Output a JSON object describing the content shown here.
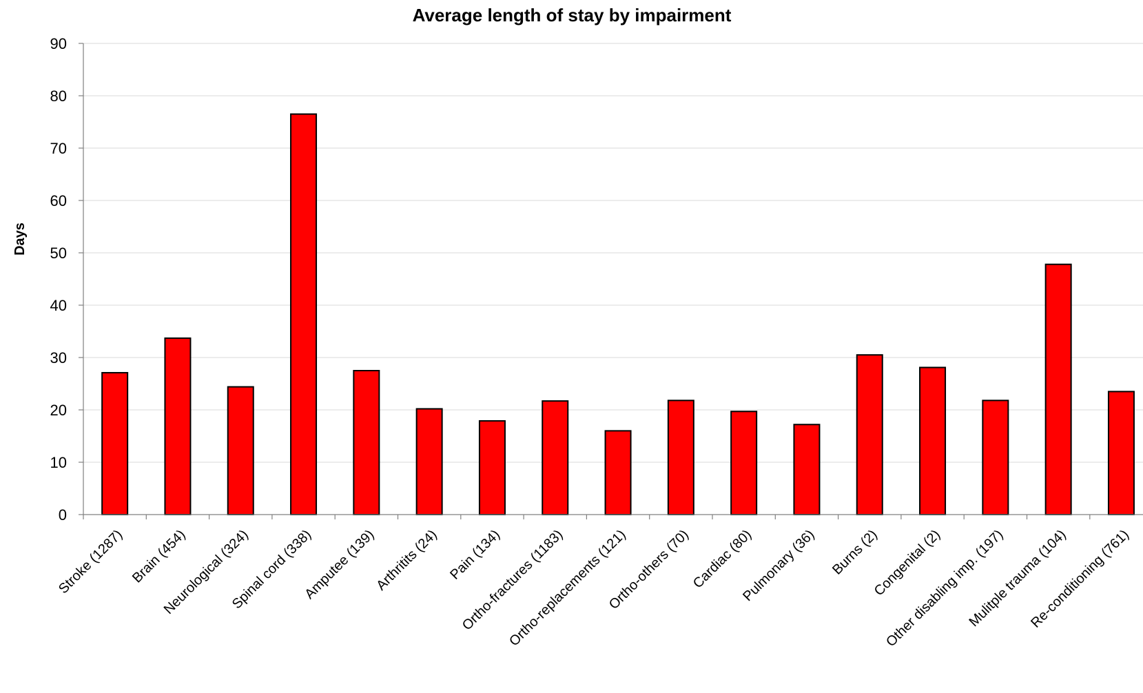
{
  "chart_data": {
    "type": "bar",
    "title": "Average length of stay by impairment",
    "xlabel": "",
    "ylabel": "Days",
    "ylim": [
      0,
      90
    ],
    "yticks": [
      0,
      10,
      20,
      30,
      40,
      50,
      60,
      70,
      80,
      90
    ],
    "grid": true,
    "legend": "none",
    "colors": {
      "bar_fill": "#ff0000",
      "bar_stroke": "#000000",
      "grid": "#d9d9d9",
      "axis": "#808080"
    },
    "categories": [
      "Stroke (1287)",
      "Brain (454)",
      "Neurological (324)",
      "Spinal cord (338)",
      "Amputee (139)",
      "Arthritits (24)",
      "Pain (134)",
      "Ortho-fractures (1183)",
      "Ortho-replacements (121)",
      "Ortho-others (70)",
      "Cardiac (80)",
      "Pulmonary (36)",
      "Burns (2)",
      "Congenital (2)",
      "Other disabling imp. (197)",
      "Mulitple trauma (104)",
      "Re-conditioning (761)"
    ],
    "values": [
      27.1,
      33.7,
      24.4,
      76.5,
      27.5,
      20.2,
      17.9,
      21.7,
      16.0,
      21.8,
      19.7,
      17.2,
      30.5,
      28.1,
      21.8,
      47.8,
      23.5
    ]
  }
}
